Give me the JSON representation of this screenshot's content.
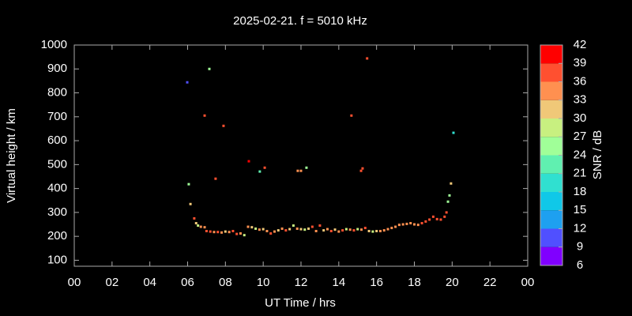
{
  "chart_data": {
    "type": "scatter",
    "title": "2025-02-21. f = 5010 kHz",
    "x_label": "UT Time / hrs",
    "y_label": "Virtual height / km",
    "colorbar_label": "SNR / dB",
    "x": [
      6.35,
      6.45,
      6.55,
      6.7,
      6.9,
      7.0,
      7.2,
      7.4,
      7.6,
      7.8,
      8.0,
      8.2,
      8.4,
      8.6,
      8.8,
      9.0,
      9.2,
      9.4,
      9.6,
      9.8,
      10.0,
      10.2,
      10.4,
      10.6,
      10.8,
      11.0,
      11.2,
      11.4,
      11.6,
      11.8,
      12.0,
      12.2,
      12.4,
      12.6,
      12.8,
      13.0,
      13.2,
      13.4,
      13.6,
      13.8,
      14.0,
      14.2,
      14.4,
      14.6,
      14.8,
      15.0,
      15.2,
      15.4,
      15.6,
      15.8,
      16.0,
      16.2,
      16.4,
      16.6,
      16.8,
      17.0,
      17.2,
      17.4,
      17.6,
      17.8,
      18.0,
      18.2,
      18.4,
      18.6,
      18.8,
      19.0,
      19.2,
      19.4,
      19.6,
      19.7,
      5.98,
      7.15,
      6.9,
      7.9,
      7.48,
      6.06,
      6.15,
      9.24,
      9.82,
      10.08,
      11.83,
      12.0,
      12.29,
      14.67,
      15.5,
      15.18,
      15.26,
      20.07,
      19.94,
      19.86,
      19.78
    ],
    "y": [
      275,
      255,
      245,
      240,
      238,
      222,
      220,
      218,
      218,
      216,
      220,
      218,
      222,
      210,
      212,
      205,
      240,
      238,
      232,
      228,
      230,
      222,
      212,
      220,
      225,
      232,
      225,
      230,
      245,
      232,
      230,
      228,
      232,
      240,
      222,
      245,
      225,
      230,
      222,
      228,
      220,
      225,
      230,
      228,
      225,
      230,
      228,
      235,
      222,
      220,
      222,
      222,
      225,
      230,
      235,
      240,
      248,
      250,
      252,
      255,
      250,
      248,
      255,
      262,
      270,
      282,
      272,
      270,
      282,
      300,
      844,
      900,
      705,
      662,
      441,
      418,
      335,
      514,
      471,
      487,
      474,
      474,
      487,
      705,
      944,
      474,
      484,
      633,
      421,
      371,
      345
    ],
    "snr": [
      36,
      30,
      27,
      33,
      33,
      36,
      36,
      33,
      36,
      33,
      30,
      33,
      36,
      38,
      33,
      27,
      33,
      30,
      27,
      33,
      30,
      33,
      36,
      33,
      30,
      33,
      36,
      30,
      27,
      33,
      30,
      27,
      30,
      36,
      33,
      36,
      30,
      33,
      36,
      30,
      33,
      36,
      27,
      33,
      36,
      27,
      33,
      38,
      30,
      27,
      30,
      33,
      33,
      33,
      33,
      33,
      33,
      33,
      33,
      33,
      33,
      33,
      36,
      36,
      36,
      36,
      36,
      36,
      36,
      36,
      10,
      25,
      38,
      38,
      38,
      24,
      32,
      39,
      23,
      38,
      34,
      34,
      25,
      38,
      37,
      38,
      38,
      20,
      32,
      24,
      26
    ],
    "xlim": [
      0,
      24
    ],
    "xticks": [
      {
        "value": 0,
        "label": "00"
      },
      {
        "value": 2,
        "label": "02"
      },
      {
        "value": 4,
        "label": "04"
      },
      {
        "value": 6,
        "label": "06"
      },
      {
        "value": 8,
        "label": "08"
      },
      10,
      12,
      14,
      16,
      18,
      20,
      22,
      {
        "value": 24,
        "label": "00"
      }
    ],
    "ylim": [
      75,
      1000
    ],
    "yticks": [
      100,
      200,
      300,
      400,
      500,
      600,
      700,
      800,
      900,
      1000
    ],
    "colorbar_ticks": [
      6,
      9,
      12,
      15,
      18,
      21,
      24,
      27,
      30,
      33,
      36,
      39,
      42
    ],
    "colorbar_colors": [
      "#8000ff",
      "#5050ff",
      "#1ea0f0",
      "#10c8e8",
      "#30e0d0",
      "#60f0b0",
      "#a0ff98",
      "#c8f080",
      "#f0c878",
      "#ff9050",
      "#ff5030",
      "#ff0000"
    ]
  }
}
